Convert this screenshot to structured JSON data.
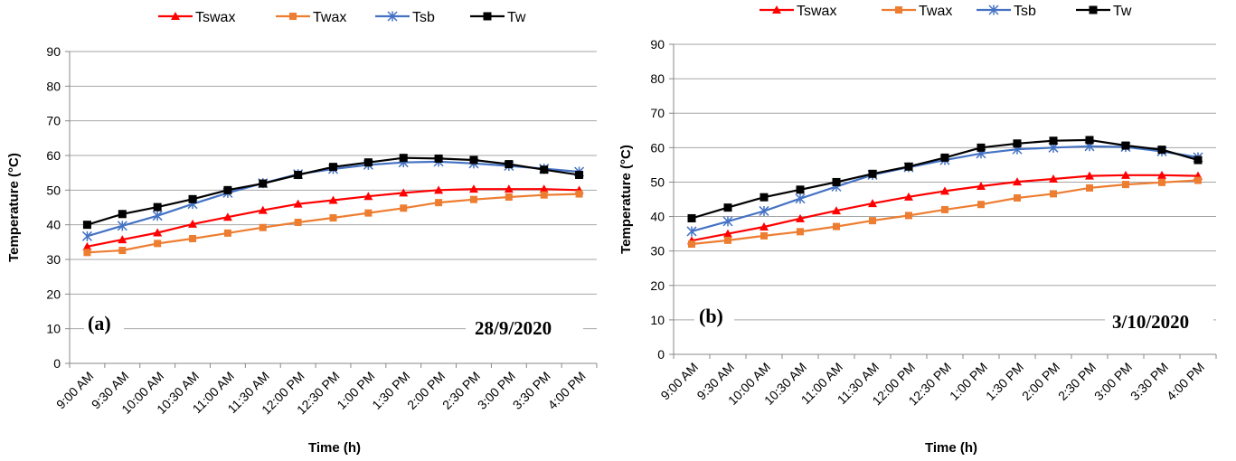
{
  "chart_data": [
    {
      "type": "line",
      "panel_label": "(a)",
      "date_label": "28/9/2020",
      "xlabel": "Time (h)",
      "ylabel": "Temperature (°C)",
      "ylim": [
        0,
        90
      ],
      "yticks": [
        "0",
        "10",
        "20",
        "30",
        "40",
        "50",
        "60",
        "70",
        "80",
        "90"
      ],
      "grid": true,
      "legend_position": "top",
      "categories": [
        "9:00 AM",
        "9:30 AM",
        "10:00 AM",
        "10:30 AM",
        "11:00 AM",
        "11:30 AM",
        "12:00 PM",
        "12:30 PM",
        "1:00 PM",
        "1:30 PM",
        "2:00 PM",
        "2:30 PM",
        "3:00 PM",
        "3:30 PM",
        "4:00 PM"
      ],
      "series": [
        {
          "name": "Tswax",
          "color": "#ff0000",
          "marker": "triangle",
          "values": [
            33.7,
            35.7,
            37.7,
            40.2,
            42.2,
            44.2,
            46.0,
            47.1,
            48.2,
            49.2,
            50.0,
            50.3,
            50.3,
            50.3,
            50.0
          ]
        },
        {
          "name": "Twax",
          "color": "#ed7d31",
          "marker": "square",
          "values": [
            32.0,
            32.6,
            34.6,
            36.0,
            37.6,
            39.2,
            40.7,
            42.0,
            43.4,
            44.8,
            46.4,
            47.3,
            48.0,
            48.6,
            48.9
          ]
        },
        {
          "name": "Tsb",
          "color": "#4472c4",
          "marker": "star",
          "values": [
            36.7,
            39.7,
            42.6,
            46.0,
            49.2,
            52.0,
            54.6,
            56.1,
            57.3,
            58.0,
            58.2,
            57.7,
            57.0,
            56.2,
            55.3
          ]
        },
        {
          "name": "Tw",
          "color": "#000000",
          "marker": "square",
          "values": [
            40.0,
            43.1,
            45.1,
            47.4,
            50.0,
            51.9,
            54.4,
            56.7,
            58.0,
            59.3,
            59.1,
            58.7,
            57.5,
            55.9,
            54.4
          ]
        }
      ]
    },
    {
      "type": "line",
      "panel_label": "(b)",
      "date_label": "3/10/2020",
      "xlabel": "Time (h)",
      "ylabel": "Temperature (°C)",
      "ylim": [
        0,
        90
      ],
      "yticks": [
        "0",
        "10",
        "20",
        "30",
        "40",
        "50",
        "60",
        "70",
        "80",
        "90"
      ],
      "grid": true,
      "legend_position": "top",
      "categories": [
        "9:00 AM",
        "9:30 AM",
        "10:00 AM",
        "10:30 AM",
        "11:00 AM",
        "11:30 AM",
        "12:00 PM",
        "12:30 PM",
        "1:00 PM",
        "1:30 PM",
        "2:00 PM",
        "2:30 PM",
        "3:00 PM",
        "3:30 PM",
        "4:00 PM"
      ],
      "series": [
        {
          "name": "Tswax",
          "color": "#ff0000",
          "marker": "triangle",
          "values": [
            33.0,
            35.0,
            37.0,
            39.4,
            41.7,
            43.8,
            45.7,
            47.4,
            48.8,
            50.1,
            50.9,
            51.8,
            52.0,
            52.0,
            51.8
          ]
        },
        {
          "name": "Twax",
          "color": "#ed7d31",
          "marker": "square",
          "values": [
            32.0,
            33.1,
            34.4,
            35.6,
            37.1,
            38.8,
            40.3,
            42.0,
            43.5,
            45.4,
            46.6,
            48.3,
            49.3,
            49.9,
            50.5
          ]
        },
        {
          "name": "Tsb",
          "color": "#4472c4",
          "marker": "star",
          "values": [
            35.7,
            38.6,
            41.6,
            45.2,
            48.7,
            52.1,
            54.3,
            56.4,
            58.3,
            59.5,
            60.0,
            60.4,
            60.2,
            58.9,
            57.2
          ]
        },
        {
          "name": "Tw",
          "color": "#000000",
          "marker": "square",
          "values": [
            39.5,
            42.6,
            45.6,
            47.8,
            50.0,
            52.4,
            54.5,
            57.1,
            60.0,
            61.2,
            62.0,
            62.2,
            60.6,
            59.4,
            56.4
          ]
        }
      ]
    }
  ]
}
